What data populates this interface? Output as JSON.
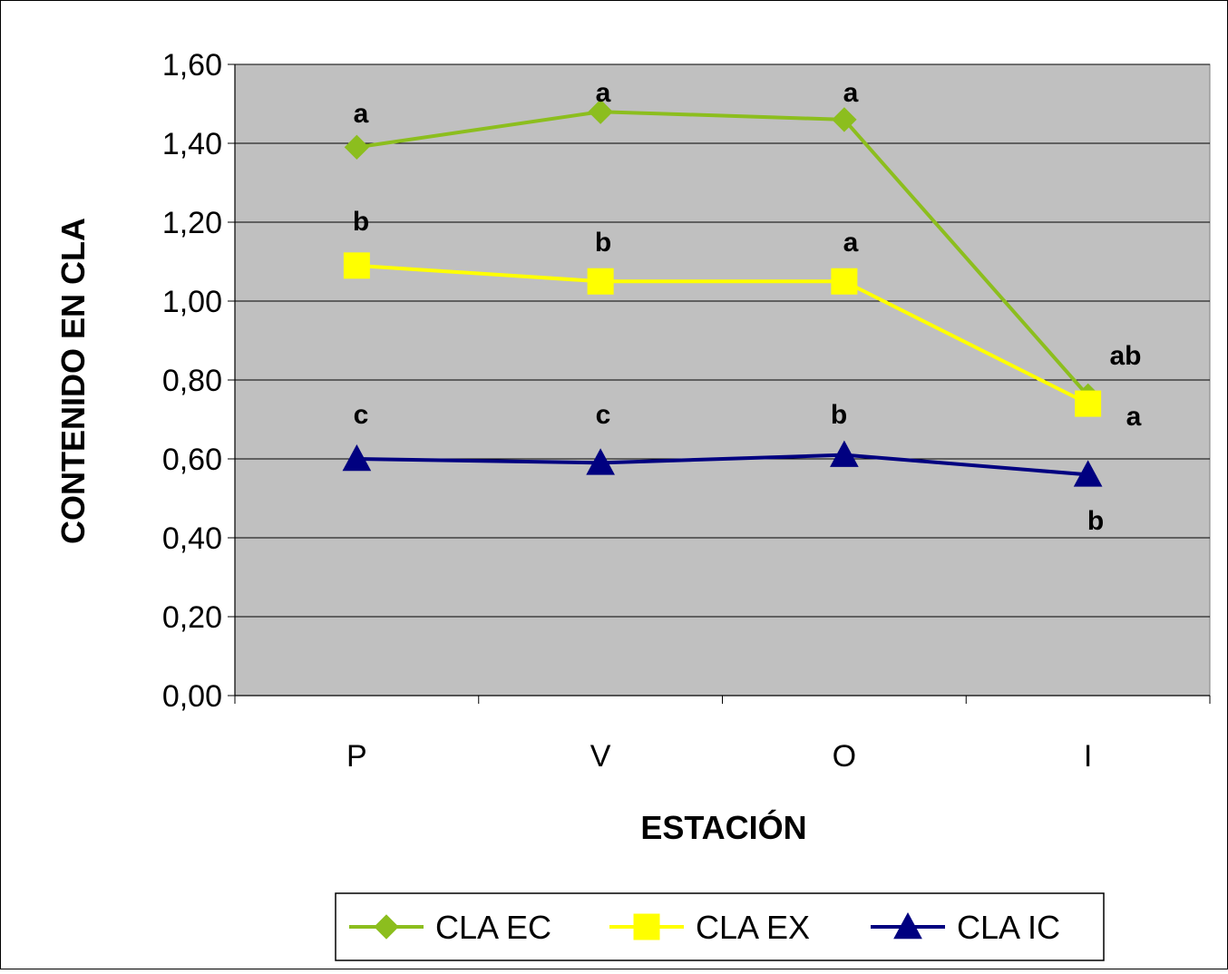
{
  "chart_data": {
    "type": "line",
    "title": "",
    "xlabel": "ESTACIÓN",
    "ylabel": "CONTENIDO EN CLA",
    "categories": [
      "P",
      "V",
      "O",
      "I"
    ],
    "ylim": [
      0,
      1.6
    ],
    "yticks": [
      "0,00",
      "0,20",
      "0,40",
      "0,60",
      "0,80",
      "1,00",
      "1,20",
      "1,40",
      "1,60"
    ],
    "ytick_values": [
      0,
      0.2,
      0.4,
      0.6,
      0.8,
      1.0,
      1.2,
      1.4,
      1.6
    ],
    "grid": true,
    "plot_background": "#c0c0c0",
    "legend_position": "bottom",
    "series": [
      {
        "name": "CLA EC",
        "color": "#8cbe1e",
        "marker": "diamond",
        "values": [
          1.39,
          1.48,
          1.46,
          0.76
        ],
        "annotations": [
          "a",
          "a",
          "a",
          "ab"
        ]
      },
      {
        "name": "CLA EX",
        "color": "#ffff00",
        "marker": "square",
        "values": [
          1.09,
          1.05,
          1.05,
          0.74
        ],
        "annotations": [
          "b",
          "b",
          "a",
          "a"
        ]
      },
      {
        "name": "CLA IC",
        "color": "#000080",
        "marker": "triangle",
        "values": [
          0.6,
          0.59,
          0.61,
          0.56
        ],
        "annotations": [
          "c",
          "c",
          "b",
          "b"
        ]
      }
    ]
  }
}
